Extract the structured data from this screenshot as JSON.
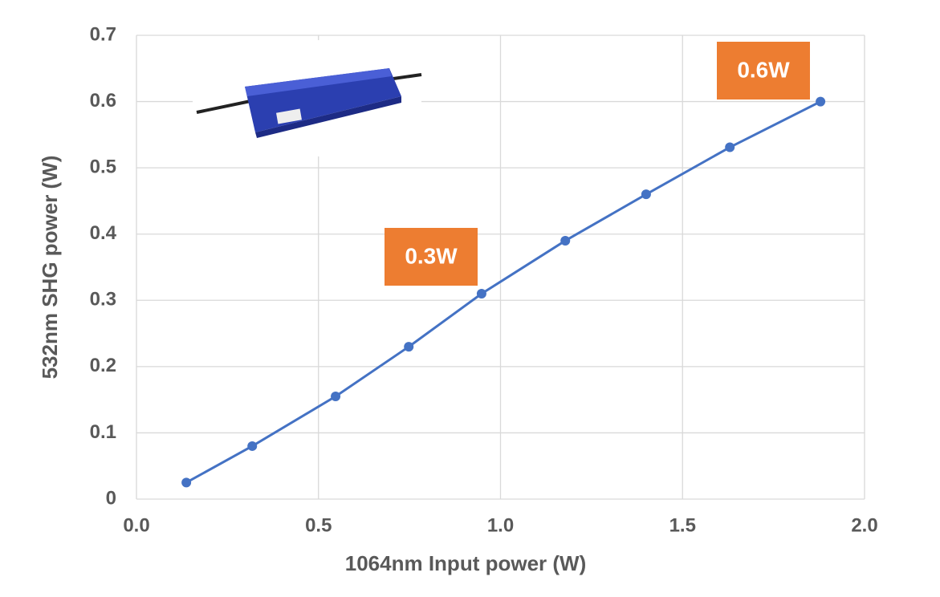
{
  "chart_data": {
    "type": "line",
    "x_label": "1064nm Input power (W)",
    "y_label": "532nm SHG power (W)",
    "x": [
      0.137,
      0.318,
      0.547,
      0.748,
      0.948,
      1.178,
      1.4,
      1.63,
      1.879
    ],
    "values": [
      0.025,
      0.08,
      0.155,
      0.23,
      0.31,
      0.39,
      0.46,
      0.531,
      0.6
    ],
    "color": "#4472c4",
    "xlim": [
      0,
      2
    ],
    "ylim": [
      0,
      0.7
    ],
    "xticks": [
      {
        "value": 0,
        "label": "0.0"
      },
      {
        "value": 0.5,
        "label": "0.5"
      },
      {
        "value": 1,
        "label": "1.0"
      },
      {
        "value": 1.5,
        "label": "1.5"
      },
      {
        "value": 2,
        "label": "2.0"
      }
    ],
    "yticks": [
      0,
      0.1,
      0.2,
      0.3,
      0.4,
      0.5,
      0.6,
      0.7
    ],
    "grid": true,
    "annotations": [
      {
        "text": "0.3W",
        "color": "#ed7d31"
      },
      {
        "text": "0.6W",
        "color": "#ed7d31"
      }
    ]
  }
}
